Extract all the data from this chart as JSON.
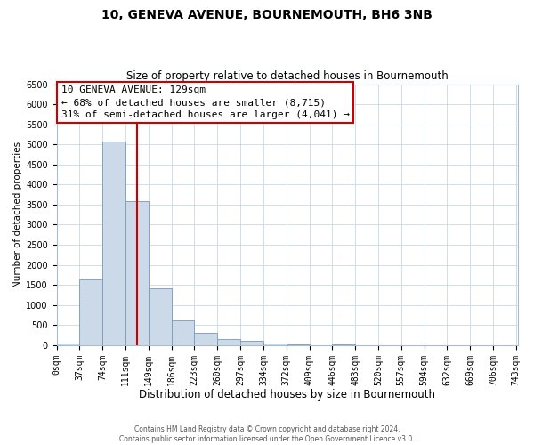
{
  "title": "10, GENEVA AVENUE, BOURNEMOUTH, BH6 3NB",
  "subtitle": "Size of property relative to detached houses in Bournemouth",
  "xlabel": "Distribution of detached houses by size in Bournemouth",
  "ylabel": "Number of detached properties",
  "bin_edges": [
    0,
    37,
    74,
    111,
    148,
    185,
    222,
    259,
    296,
    333,
    370,
    407,
    444,
    481,
    518,
    555,
    592,
    629,
    666,
    703,
    740
  ],
  "bin_labels": [
    "0sqm",
    "37sqm",
    "74sqm",
    "111sqm",
    "149sqm",
    "186sqm",
    "223sqm",
    "260sqm",
    "297sqm",
    "334sqm",
    "372sqm",
    "409sqm",
    "446sqm",
    "483sqm",
    "520sqm",
    "557sqm",
    "594sqm",
    "632sqm",
    "669sqm",
    "706sqm",
    "743sqm"
  ],
  "bar_heights": [
    50,
    1630,
    5080,
    3580,
    1420,
    620,
    300,
    150,
    100,
    50,
    30,
    0,
    30,
    0,
    0,
    0,
    0,
    0,
    0,
    0
  ],
  "bar_color": "#ccd9e8",
  "bar_edge_color": "#7799bb",
  "red_line_x": 129,
  "red_line_color": "#cc0000",
  "annotation_text_line1": "10 GENEVA AVENUE: 129sqm",
  "annotation_text_line2": "← 68% of detached houses are smaller (8,715)",
  "annotation_text_line3": "31% of semi-detached houses are larger (4,041) →",
  "annotation_box_edge_color": "#cc0000",
  "ylim": [
    0,
    6500
  ],
  "yticks": [
    0,
    500,
    1000,
    1500,
    2000,
    2500,
    3000,
    3500,
    4000,
    4500,
    5000,
    5500,
    6000,
    6500
  ],
  "footer_line1": "Contains HM Land Registry data © Crown copyright and database right 2024.",
  "footer_line2": "Contains public sector information licensed under the Open Government Licence v3.0.",
  "bg_color": "#ffffff",
  "plot_bg_color": "#ffffff",
  "grid_color": "#d0dde8",
  "title_fontsize": 10,
  "subtitle_fontsize": 8.5,
  "annotation_fontsize": 8,
  "tick_fontsize": 7,
  "xlabel_fontsize": 8.5,
  "ylabel_fontsize": 7.5
}
